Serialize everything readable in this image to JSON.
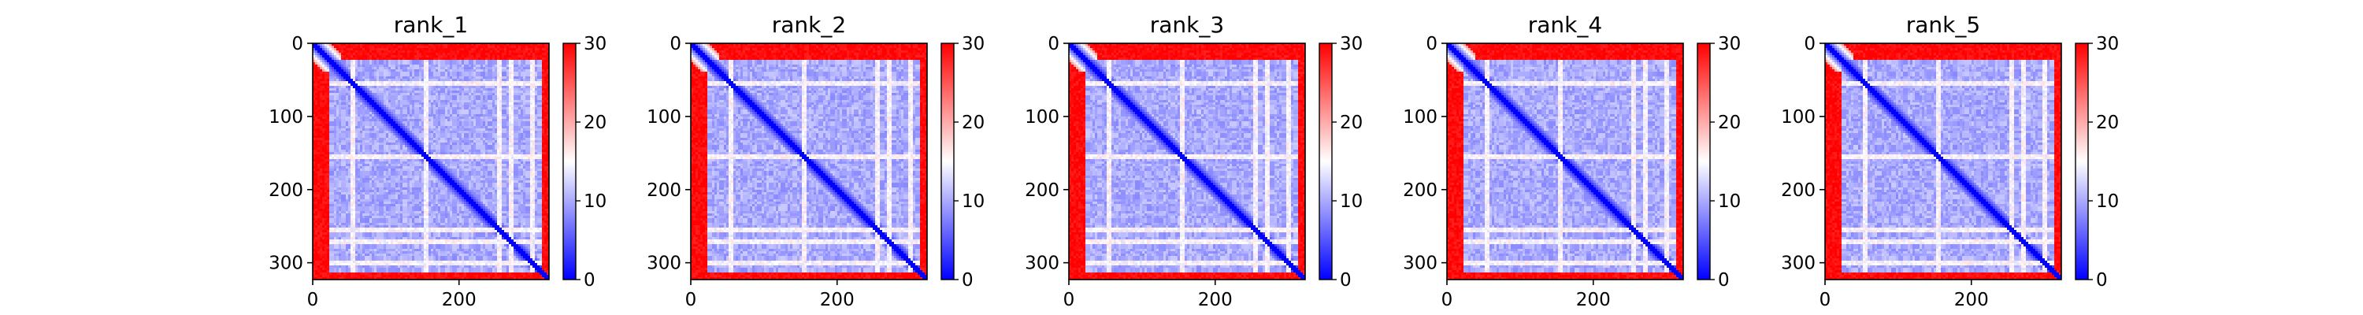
{
  "chart_data": [
    {
      "type": "heatmap",
      "title": "rank_1",
      "xlabel": "",
      "ylabel": "",
      "x_range": [
        0,
        323
      ],
      "y_range": [
        0,
        323
      ],
      "x_ticks": [
        "0",
        "200"
      ],
      "y_ticks": [
        "0",
        "100",
        "200",
        "300"
      ],
      "color_range": [
        0,
        30
      ],
      "colorbar_ticks": [
        "0",
        "10",
        "20",
        "30"
      ],
      "colormap": [
        "#0000ff",
        "#ffffff",
        "#ff0000"
      ],
      "values_description_numeric": {
        "n": 323,
        "diag_min": 0,
        "offdiag_typical": 8,
        "terminal_band_low": 28,
        "bands": [
          55,
          155,
          255,
          270,
          300
        ]
      }
    },
    {
      "type": "heatmap",
      "title": "rank_2",
      "xlabel": "",
      "ylabel": "",
      "x_range": [
        0,
        323
      ],
      "y_range": [
        0,
        323
      ],
      "x_ticks": [
        "0",
        "200"
      ],
      "y_ticks": [
        "0",
        "100",
        "200",
        "300"
      ],
      "color_range": [
        0,
        30
      ],
      "colorbar_ticks": [
        "0",
        "10",
        "20",
        "30"
      ],
      "colormap": [
        "#0000ff",
        "#ffffff",
        "#ff0000"
      ],
      "values_description_numeric": {
        "n": 323,
        "diag_min": 0,
        "offdiag_typical": 8,
        "terminal_band_low": 28,
        "bands": [
          55,
          155,
          255,
          270,
          300
        ]
      }
    },
    {
      "type": "heatmap",
      "title": "rank_3",
      "xlabel": "",
      "ylabel": "",
      "x_range": [
        0,
        323
      ],
      "y_range": [
        0,
        323
      ],
      "x_ticks": [
        "0",
        "200"
      ],
      "y_ticks": [
        "0",
        "100",
        "200",
        "300"
      ],
      "color_range": [
        0,
        30
      ],
      "colorbar_ticks": [
        "0",
        "10",
        "20",
        "30"
      ],
      "colormap": [
        "#0000ff",
        "#ffffff",
        "#ff0000"
      ],
      "values_description_numeric": {
        "n": 323,
        "diag_min": 0,
        "offdiag_typical": 8,
        "terminal_band_low": 28,
        "bands": [
          55,
          155,
          255,
          270,
          300
        ]
      }
    },
    {
      "type": "heatmap",
      "title": "rank_4",
      "xlabel": "",
      "ylabel": "",
      "x_range": [
        0,
        323
      ],
      "y_range": [
        0,
        323
      ],
      "x_ticks": [
        "0",
        "200"
      ],
      "y_ticks": [
        "0",
        "100",
        "200",
        "300"
      ],
      "color_range": [
        0,
        30
      ],
      "colorbar_ticks": [
        "0",
        "10",
        "20",
        "30"
      ],
      "colormap": [
        "#0000ff",
        "#ffffff",
        "#ff0000"
      ],
      "values_description_numeric": {
        "n": 323,
        "diag_min": 0,
        "offdiag_typical": 8,
        "terminal_band_low": 28,
        "bands": [
          55,
          155,
          255,
          270,
          300
        ]
      }
    },
    {
      "type": "heatmap",
      "title": "rank_5",
      "xlabel": "",
      "ylabel": "",
      "x_range": [
        0,
        323
      ],
      "y_range": [
        0,
        323
      ],
      "x_ticks": [
        "0",
        "200"
      ],
      "y_ticks": [
        "0",
        "100",
        "200",
        "300"
      ],
      "color_range": [
        0,
        30
      ],
      "colorbar_ticks": [
        "0",
        "10",
        "20",
        "30"
      ],
      "colormap": [
        "#0000ff",
        "#ffffff",
        "#ff0000"
      ],
      "values_description_numeric": {
        "n": 323,
        "diag_min": 0,
        "offdiag_typical": 8,
        "terminal_band_low": 28,
        "bands": [
          55,
          155,
          255,
          270,
          300
        ]
      }
    }
  ]
}
